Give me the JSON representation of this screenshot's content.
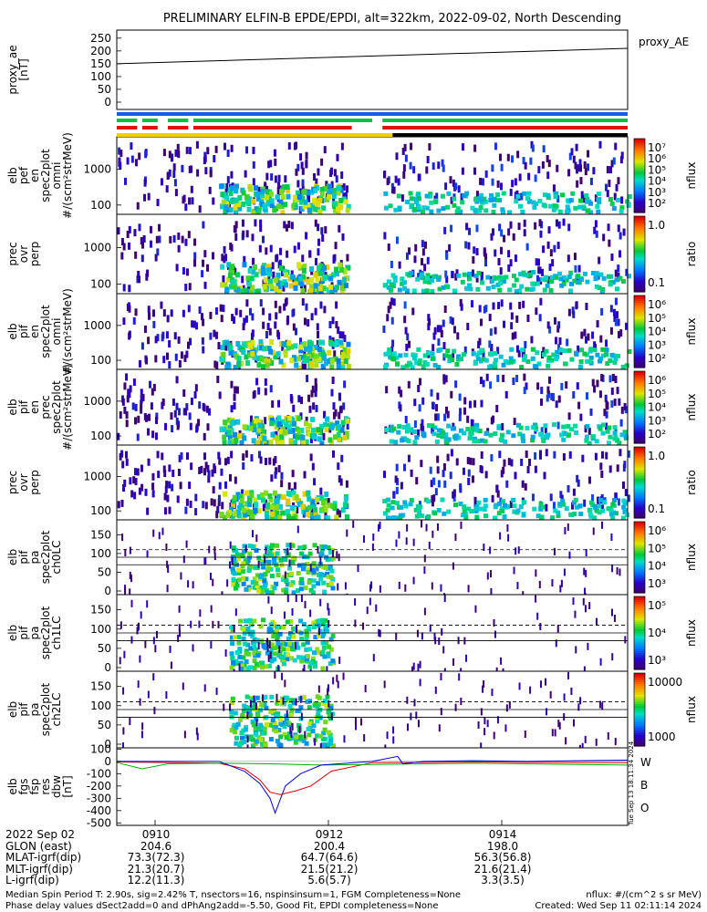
{
  "title": "PRELIMINARY ELFIN-B EPDE/EPDI, alt=322km, 2022-09-02, North Descending",
  "chart_data": {
    "type": "heatmap",
    "panels": [
      {
        "id": "proxy_ae",
        "type": "line",
        "ylabel": [
          "proxy_ae",
          "[nT]"
        ],
        "yticks": [
          "250",
          "200",
          "150",
          "100",
          "50",
          "0"
        ],
        "ylim": [
          0,
          260
        ],
        "legend": "proxy_AE",
        "x": [
          0,
          1
        ],
        "values": [
          150,
          210
        ]
      },
      {
        "id": "spec-en-omni",
        "type": "heatmap",
        "ylabel": [
          "elb",
          "pef",
          "en",
          "spec2plot",
          "omni",
          "#/(scm²strMeV)"
        ],
        "yticks": [
          "1000",
          "100"
        ],
        "yscale": "log",
        "colorbar": {
          "label": "nflux",
          "ticks": [
            "10⁷",
            "10⁶",
            "10⁵",
            "10⁴",
            "10³",
            "10²"
          ]
        }
      },
      {
        "id": "prec-ovr-perp-e",
        "type": "heatmap",
        "ylabel": [
          "prec",
          "ovr",
          "perp"
        ],
        "yticks": [
          "1000",
          "100"
        ],
        "yscale": "log",
        "colorbar": {
          "label": "ratio",
          "ticks": [
            "1.0",
            "0.1"
          ]
        }
      },
      {
        "id": "spec-en-omni-i",
        "type": "heatmap",
        "ylabel": [
          "elb",
          "pif",
          "en",
          "spec2plot",
          "omni",
          "#/(scm²strMeV)"
        ],
        "yticks": [
          "1000",
          "100"
        ],
        "yscale": "log",
        "colorbar": {
          "label": "nflux",
          "ticks": [
            "10⁶",
            "10⁵",
            "10⁴",
            "10³",
            "10²"
          ]
        }
      },
      {
        "id": "spec-en-prec-i",
        "type": "heatmap",
        "ylabel": [
          "elb",
          "pif",
          "en",
          "prec",
          "spec2plot",
          "#/(scm²strMeV)"
        ],
        "yticks": [
          "1000",
          "100"
        ],
        "yscale": "log",
        "colorbar": {
          "label": "nflux",
          "ticks": [
            "10⁶",
            "10⁵",
            "10⁴",
            "10³",
            "10²"
          ]
        }
      },
      {
        "id": "prec-ovr-perp-i",
        "type": "heatmap",
        "ylabel": [
          "prec",
          "ovr",
          "perp"
        ],
        "yticks": [
          "1000",
          "100"
        ],
        "yscale": "log",
        "colorbar": {
          "label": "ratio",
          "ticks": [
            "1.0",
            "0.1"
          ]
        }
      },
      {
        "id": "pa-ch0lc",
        "type": "heatmap",
        "ylabel": [
          "elb",
          "pif",
          "pa",
          "spec2plot",
          "ch0LC"
        ],
        "yticks": [
          "150",
          "100",
          "50",
          "0"
        ],
        "ylim": [
          0,
          180
        ],
        "colorbar": {
          "label": "nflux",
          "ticks": [
            "10⁶",
            "10⁵",
            "10⁴",
            "10³"
          ]
        }
      },
      {
        "id": "pa-ch1lc",
        "type": "heatmap",
        "ylabel": [
          "elb",
          "pif",
          "pa",
          "spec2plot",
          "ch1LC"
        ],
        "yticks": [
          "150",
          "100",
          "50",
          "0"
        ],
        "ylim": [
          0,
          180
        ],
        "colorbar": {
          "label": "nflux",
          "ticks": [
            "10⁵",
            "10⁴",
            "10³"
          ]
        }
      },
      {
        "id": "pa-ch2lc",
        "type": "heatmap",
        "ylabel": [
          "elb",
          "pif",
          "pa",
          "spec2plot",
          "ch2LC"
        ],
        "yticks": [
          "150",
          "100",
          "50",
          "0"
        ],
        "ylim": [
          0,
          180
        ],
        "colorbar": {
          "label": "nflux",
          "ticks": [
            "10000",
            "1000"
          ]
        }
      },
      {
        "id": "fgs",
        "type": "line",
        "ylabel": [
          "elb",
          "fgs",
          "fsp",
          "res",
          "dbw",
          "[nT]"
        ],
        "yticks": [
          "100",
          "0",
          "-100",
          "-200",
          "-300",
          "-400",
          "-500"
        ],
        "ylim": [
          -520,
          110
        ],
        "legend": [
          "W",
          "B",
          "O"
        ],
        "series": [
          {
            "name": "W",
            "color": "#e00000",
            "x": [
              0,
              0.12,
              0.2,
              0.25,
              0.28,
              0.3,
              0.32,
              0.35,
              0.38,
              0.42,
              0.5,
              0.7,
              0.9,
              1
            ],
            "values": [
              -5,
              -10,
              -15,
              -60,
              -150,
              -250,
              -270,
              -240,
              -200,
              -80,
              -10,
              -5,
              -10,
              -10
            ]
          },
          {
            "name": "B",
            "color": "#00b000",
            "x": [
              0,
              0.05,
              0.1,
              0.2,
              0.3,
              0.4,
              0.5,
              0.6,
              0.7,
              0.8,
              0.9,
              1
            ],
            "values": [
              -10,
              -60,
              -20,
              -15,
              -20,
              -30,
              -25,
              -20,
              -15,
              -20,
              -25,
              -30
            ]
          },
          {
            "name": "O",
            "color": "#0000e0",
            "x": [
              0,
              0.2,
              0.25,
              0.28,
              0.3,
              0.31,
              0.33,
              0.36,
              0.4,
              0.5,
              0.55,
              0.56,
              0.6,
              0.7,
              0.8,
              1
            ],
            "values": [
              0,
              0,
              -80,
              -180,
              -300,
              -420,
              -200,
              -100,
              -30,
              0,
              40,
              -20,
              0,
              5,
              0,
              10
            ]
          }
        ]
      }
    ],
    "x_axis": {
      "time_ticks": [
        "0910",
        "0912",
        "0914"
      ]
    },
    "side_labels": [
      "Tue Sep 13 18:11:34 2024"
    ]
  },
  "footer": {
    "rows": [
      {
        "label": "2022 Sep 02",
        "values": [
          "0910",
          "0912",
          "0914"
        ]
      },
      {
        "label": "GLON (east)",
        "values": [
          "204.6",
          "200.4",
          "198.0"
        ]
      },
      {
        "label": "MLAT-igrf(dip)",
        "values": [
          "73.3(72.3)",
          "64.7(64.6)",
          "56.3(56.8)"
        ]
      },
      {
        "label": "MLT-igrf(dip)",
        "values": [
          "21.3(20.7)",
          "21.5(21.2)",
          "21.6(21.4)"
        ]
      },
      {
        "label": "L-igrf(dip)",
        "values": [
          "12.2(11.3)",
          "5.6(5.7)",
          "3.3(3.5)"
        ]
      }
    ],
    "note1": "Median Spin Period T: 2.90s, sig=2.42% T, nsectors=16, nspinsinsum=1, FGM Completeness=None",
    "note2": "Phase delay values dSect2add=0 and dPhAng2add=-5.50, Good Fit, EPDI completeness=None",
    "note_right1": "nflux: #/(cm^2 s sr MeV)",
    "note_right2": "Created: Wed Sep 11 02:11:14 2024"
  }
}
